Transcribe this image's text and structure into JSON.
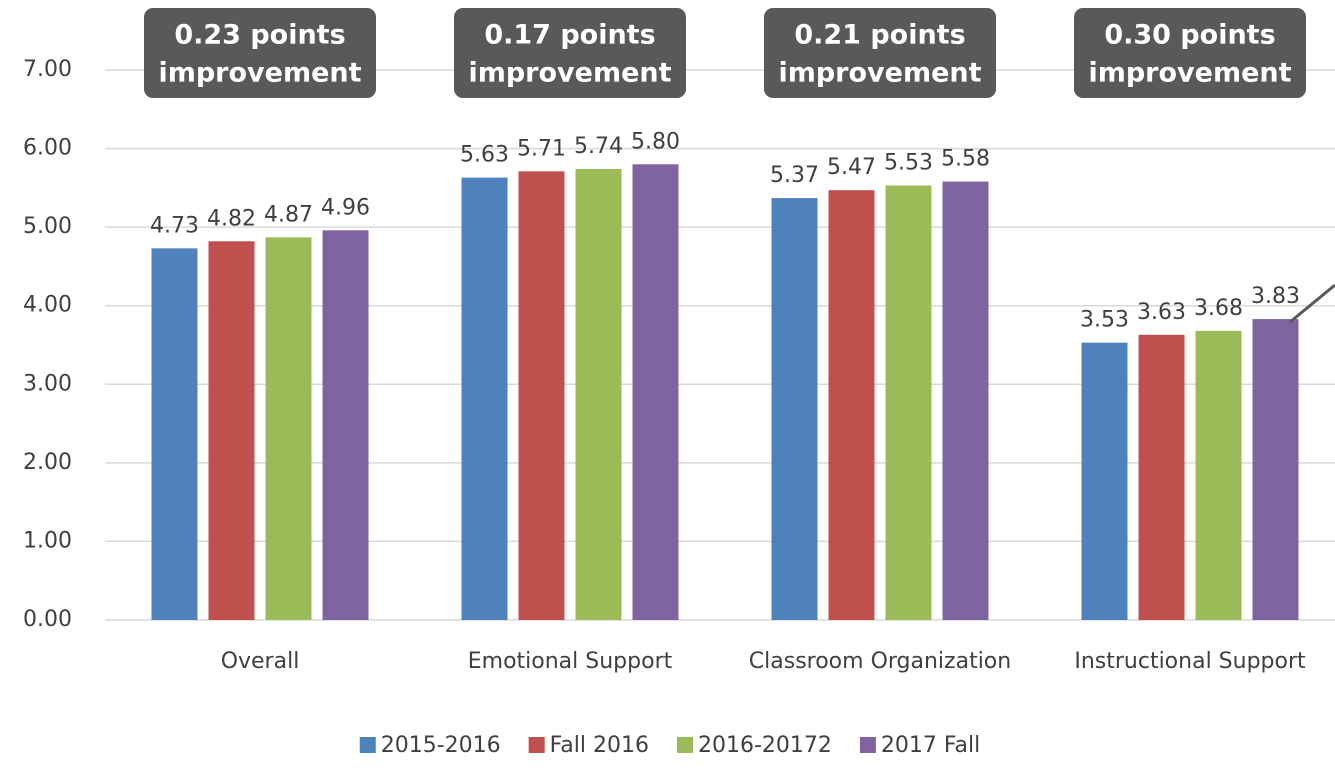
{
  "chart_data": {
    "type": "bar",
    "categories": [
      "Overall",
      "Emotional Support",
      "Classroom Organization",
      "Instructional Support"
    ],
    "series": [
      {
        "name": "2015-2016",
        "color": "#4f81bd",
        "values": [
          4.73,
          5.63,
          5.37,
          3.53
        ]
      },
      {
        "name": "Fall 2016",
        "color": "#c0504d",
        "values": [
          4.82,
          5.71,
          5.47,
          3.63
        ]
      },
      {
        "name": "2016-20172",
        "color": "#9bbb59",
        "values": [
          4.87,
          5.74,
          5.53,
          3.68
        ]
      },
      {
        "name": "2017 Fall",
        "color": "#8064a2",
        "values": [
          4.96,
          5.8,
          5.58,
          3.83
        ],
        "value_labels": [
          "4.96",
          "5.80",
          "5.58",
          "3.83"
        ]
      }
    ],
    "annotations": [
      [
        "0.23 points",
        "improvement"
      ],
      [
        "0.17 points",
        "improvement"
      ],
      [
        "0.21 points",
        "improvement"
      ],
      [
        "0.30 points",
        "improvement"
      ]
    ],
    "ylim": [
      0,
      7
    ],
    "yticks": [
      {
        "value": 0,
        "label": "0.00"
      },
      {
        "value": 1,
        "label": "1.00"
      },
      {
        "value": 2,
        "label": "2.00"
      },
      {
        "value": 3,
        "label": "3.00"
      },
      {
        "value": 4,
        "label": "4.00"
      },
      {
        "value": 5,
        "label": "5.00"
      },
      {
        "value": 6,
        "label": "6.00"
      },
      {
        "value": 7,
        "label": "7.00"
      }
    ],
    "grid": true,
    "legend": "bottom"
  }
}
